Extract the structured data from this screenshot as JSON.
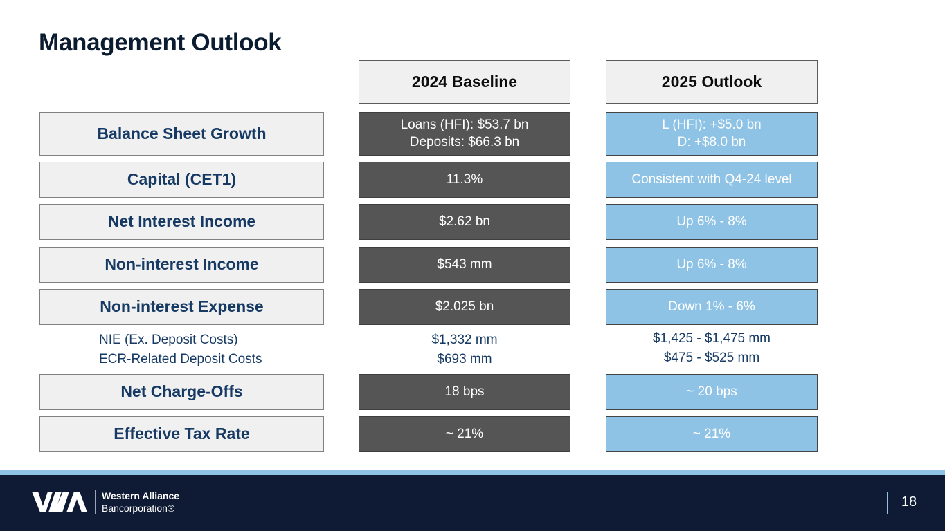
{
  "title": "Management Outlook",
  "columns": {
    "baseline": "2024 Baseline",
    "outlook": "2025 Outlook"
  },
  "rows": [
    {
      "label": "Balance Sheet Growth",
      "baseline": [
        "Loans (HFI): $53.7 bn",
        "Deposits: $66.3 bn"
      ],
      "outlook": [
        "L (HFI): +$5.0 bn",
        "D: +$8.0 bn"
      ]
    },
    {
      "label": "Capital (CET1)",
      "baseline": [
        "11.3%"
      ],
      "outlook": [
        "Consistent with Q4-24 level"
      ]
    },
    {
      "label": "Net Interest Income",
      "baseline": [
        "$2.62 bn"
      ],
      "outlook": [
        "Up 6% - 8%"
      ]
    },
    {
      "label": "Non-interest Income",
      "baseline": [
        "$543 mm"
      ],
      "outlook": [
        "Up 6% - 8%"
      ]
    },
    {
      "label": "Non-interest Expense",
      "baseline": [
        "$2.025 bn"
      ],
      "outlook": [
        "Down 1% - 6%"
      ]
    },
    {
      "label": "Net Charge-Offs",
      "baseline": [
        "18 bps"
      ],
      "outlook": [
        "~ 20 bps"
      ]
    },
    {
      "label": "Effective Tax Rate",
      "baseline": [
        "~ 21%"
      ],
      "outlook": [
        "~ 21%"
      ]
    }
  ],
  "expense_detail": {
    "labels": [
      "NIE (Ex. Deposit Costs)",
      "ECR-Related Deposit Costs"
    ],
    "baseline": [
      "$1,332 mm",
      "$693 mm"
    ],
    "outlook": [
      "$1,425 - $1,475 mm",
      "$475 - $525 mm"
    ]
  },
  "footer": {
    "company": "Western Alliance",
    "company_sub": "Bancorporation®",
    "page_number": "18"
  },
  "colors": {
    "title": "#0b1b30",
    "label_text": "#163a63",
    "baseline_fill": "#555555",
    "outlook_fill": "#8ec3e6",
    "footer_bg": "#0f1b35"
  }
}
